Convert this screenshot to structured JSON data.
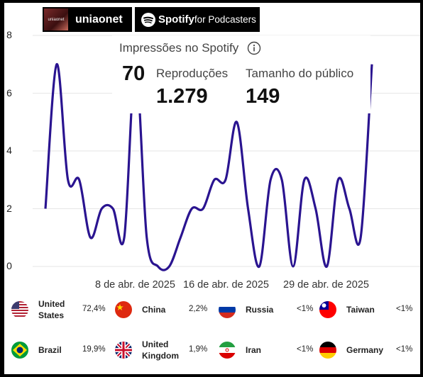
{
  "header": {
    "show_name": "uniaonet",
    "cover_text": "uniaonet",
    "spotify_brand": "Spotify",
    "spotify_suffix": "for Podcasters"
  },
  "impressions": {
    "title": "Impressões no Spotify",
    "impressions_value": "70",
    "plays_label": "Reproduções",
    "plays_value": "1.279",
    "audience_label": "Tamanho do público",
    "audience_value": "149"
  },
  "chart_data": {
    "type": "line",
    "ylim": [
      0,
      8
    ],
    "yticks": [
      "0",
      "2",
      "4",
      "6",
      "8"
    ],
    "xticks": [
      "8 de abr. de 2025",
      "16 de abr. de 2025",
      "29 de abr. de 2025"
    ],
    "color": "#2a1490",
    "values": [
      2,
      7,
      3,
      3,
      1,
      2,
      2,
      1,
      7,
      1,
      0,
      0,
      1,
      2,
      2,
      3,
      3,
      5,
      2,
      0,
      3,
      3,
      0,
      3,
      2,
      0,
      3,
      2,
      1,
      7
    ]
  },
  "countries": [
    {
      "name": "United States",
      "pct": "72,4%",
      "flag": "us-flag-icon"
    },
    {
      "name": "China",
      "pct": "2,2%",
      "flag": "china-flag-icon"
    },
    {
      "name": "Russia",
      "pct": "<1%",
      "flag": "russia-flag-icon"
    },
    {
      "name": "Taiwan",
      "pct": "<1%",
      "flag": "taiwan-flag-icon"
    },
    {
      "name": "Brazil",
      "pct": "19,9%",
      "flag": "brazil-flag-icon"
    },
    {
      "name": "United Kingdom",
      "pct": "1,9%",
      "flag": "uk-flag-icon"
    },
    {
      "name": "Iran",
      "pct": "<1%",
      "flag": "iran-flag-icon"
    },
    {
      "name": "Germany",
      "pct": "<1%",
      "flag": "germany-flag-icon"
    }
  ]
}
